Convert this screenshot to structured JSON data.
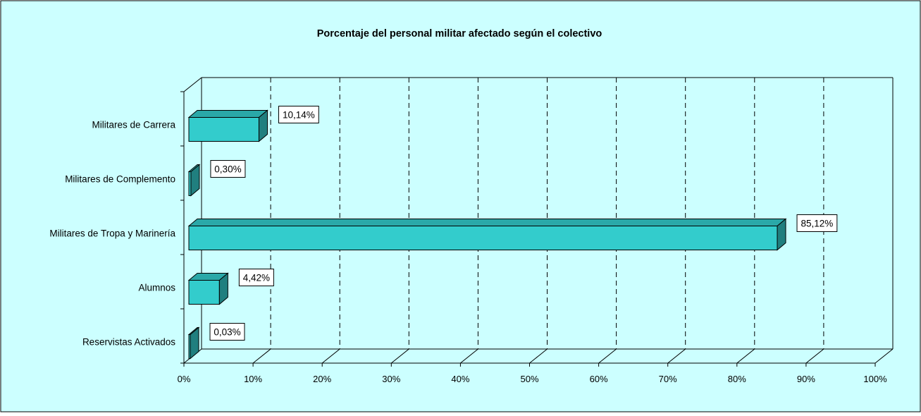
{
  "colors": {
    "background": "#ccffff",
    "bar_front": "#33cccc",
    "bar_top": "#2aa8a8",
    "bar_side": "#207f7f",
    "grid": "#000000",
    "text": "#000000",
    "label_box": "#ffffff"
  },
  "chart_data": {
    "type": "bar",
    "orientation": "horizontal",
    "title": "Porcentaje del personal militar afectado según el colectivo",
    "xlabel": "",
    "ylabel": "",
    "categories": [
      "Militares de Carrera",
      "Militares de Complemento",
      "Militares de Tropa y Marinería",
      "Alumnos",
      "Reservistas Activados"
    ],
    "values": [
      10.14,
      0.3,
      85.12,
      4.42,
      0.03
    ],
    "value_labels": [
      "10,14%",
      "0,30%",
      "85,12%",
      "4,42%",
      "0,03%"
    ],
    "xlim": [
      0,
      100
    ],
    "x_ticks": [
      "0%",
      "10%",
      "20%",
      "30%",
      "40%",
      "50%",
      "60%",
      "70%",
      "80%",
      "90%",
      "100%"
    ],
    "grid": true,
    "grid_style": "dashed",
    "legend": "none",
    "style": "3d"
  }
}
